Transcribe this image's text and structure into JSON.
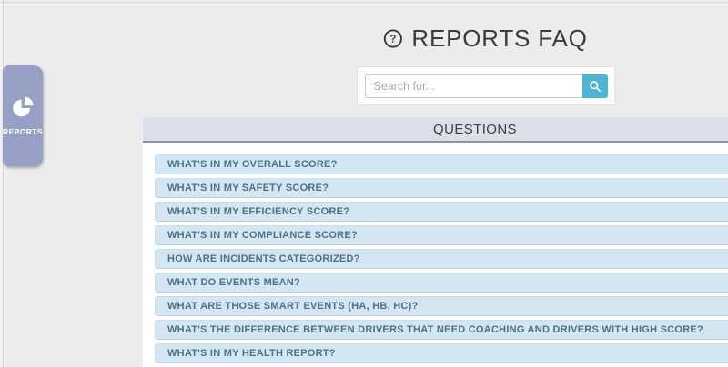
{
  "page": {
    "title": "REPORTS FAQ",
    "title_icon": "question-circle-icon"
  },
  "sidebar_tab": {
    "label": "REPORTS",
    "icon": "pie-chart-icon",
    "color": "#96a0c4"
  },
  "search": {
    "placeholder": "Search for...",
    "value": "",
    "button_icon": "search-icon",
    "button_color": "#4cb5d3"
  },
  "questions_panel": {
    "header": "QUESTIONS",
    "item_bg_color": "#d3e6f1",
    "item_text_color": "#4b7286",
    "header_bg_color": "#dde0ea",
    "items": [
      "WHAT'S IN MY OVERALL SCORE?",
      "WHAT'S IN MY SAFETY SCORE?",
      "WHAT'S IN MY EFFICIENCY SCORE?",
      "WHAT'S IN MY COMPLIANCE SCORE?",
      "HOW ARE INCIDENTS CATEGORIZED?",
      "WHAT DO EVENTS MEAN?",
      "WHAT ARE THOSE SMART EVENTS (HA, HB, HC)?",
      "WHAT'S THE DIFFERENCE BETWEEN DRIVERS THAT NEED COACHING AND DRIVERS WITH HIGH SCORE?",
      "WHAT'S IN MY HEALTH REPORT?"
    ]
  }
}
